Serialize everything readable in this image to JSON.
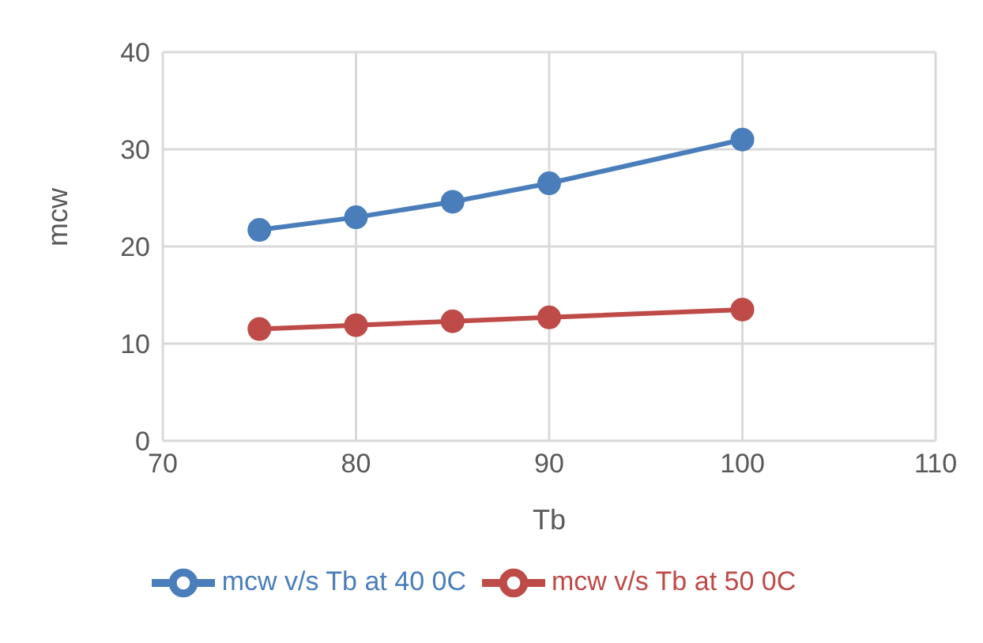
{
  "chart_data": {
    "type": "line",
    "xlabel": "Tb",
    "ylabel": "mcw",
    "x": [
      75,
      80,
      85,
      90,
      100
    ],
    "series": [
      {
        "name": "mcw v/s Tb at 40 0C",
        "color": "#4a7ebb",
        "values": [
          21.7,
          23.0,
          24.6,
          26.5,
          31.0
        ]
      },
      {
        "name": "mcw v/s Tb at 50 0C",
        "color": "#be4b48",
        "values": [
          11.5,
          11.9,
          12.3,
          12.7,
          13.5
        ]
      }
    ],
    "xlim": [
      70,
      110
    ],
    "xticks": [
      70,
      80,
      90,
      100,
      110
    ],
    "ylim": [
      0,
      40
    ],
    "yticks": [
      0,
      10,
      20,
      30,
      40
    ],
    "grid": true,
    "legend": "bottom",
    "marker": "circle",
    "line_style": "solid"
  }
}
